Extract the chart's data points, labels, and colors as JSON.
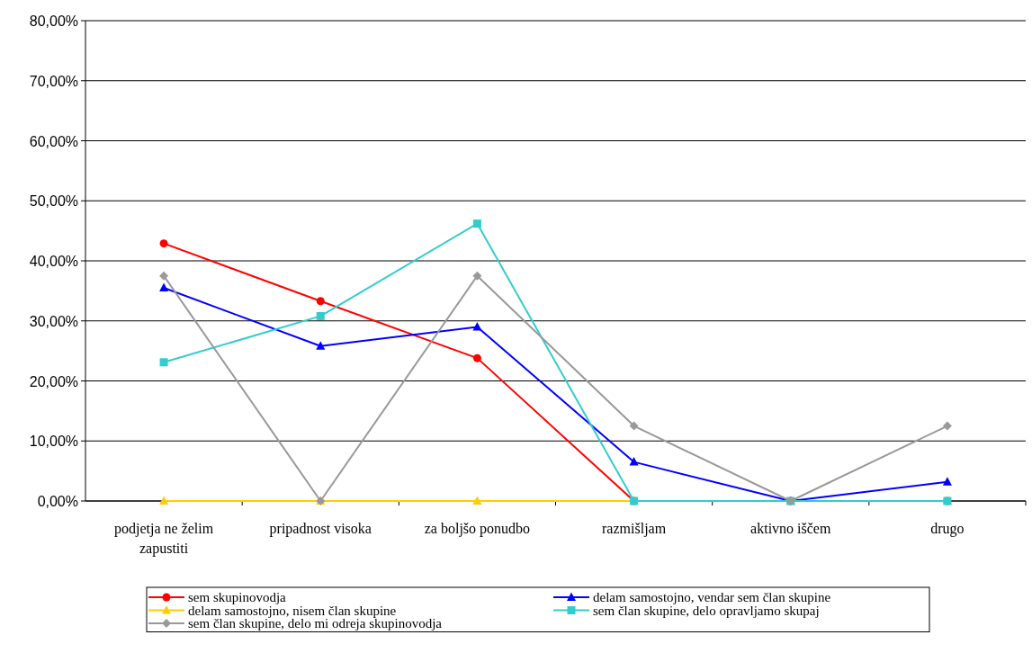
{
  "chart_data": {
    "type": "line",
    "categories": [
      "podjetja ne želim zapustiti",
      "pripadnost visoka",
      "za boljšo ponudbo",
      "razmišljam",
      "aktivno iščem",
      "drugo"
    ],
    "series": [
      {
        "name": "sem skupinovodja",
        "color": "#ff0000",
        "marker": "circle",
        "values": [
          42.9,
          33.3,
          23.8,
          0,
          0,
          0
        ]
      },
      {
        "name": "delam samostojno, vendar sem član skupine",
        "color": "#0000ff",
        "marker": "triangle",
        "values": [
          35.5,
          25.8,
          29,
          6.5,
          0,
          3.2
        ]
      },
      {
        "name": "delam samostojno, nisem član skupine",
        "color": "#ffcc00",
        "marker": "triangle",
        "values": [
          0,
          0,
          0,
          0,
          0,
          0
        ]
      },
      {
        "name": "sem član skupine, delo opravljamo skupaj",
        "color": "#33cccc",
        "marker": "square",
        "values": [
          23.1,
          30.8,
          46.2,
          0,
          0,
          0
        ]
      },
      {
        "name": "sem član skupine, delo mi odreja skupinovodja",
        "color": "#999999",
        "marker": "diamond",
        "values": [
          37.5,
          0,
          37.5,
          12.5,
          0,
          12.5
        ]
      }
    ],
    "ylim": [
      0,
      80
    ],
    "yticks": [
      {
        "value": 0,
        "label": "0,00%"
      },
      {
        "value": 10,
        "label": "10,00%"
      },
      {
        "value": 20,
        "label": "20,00%"
      },
      {
        "value": 30,
        "label": "30,00%"
      },
      {
        "value": 40,
        "label": "40,00%"
      },
      {
        "value": 50,
        "label": "50,00%"
      },
      {
        "value": 60,
        "label": "60,00%"
      },
      {
        "value": 70,
        "label": "70,00%"
      },
      {
        "value": 80,
        "label": "80,00%"
      }
    ],
    "grid": "y",
    "legend": "bottom",
    "line_style": "solid"
  }
}
